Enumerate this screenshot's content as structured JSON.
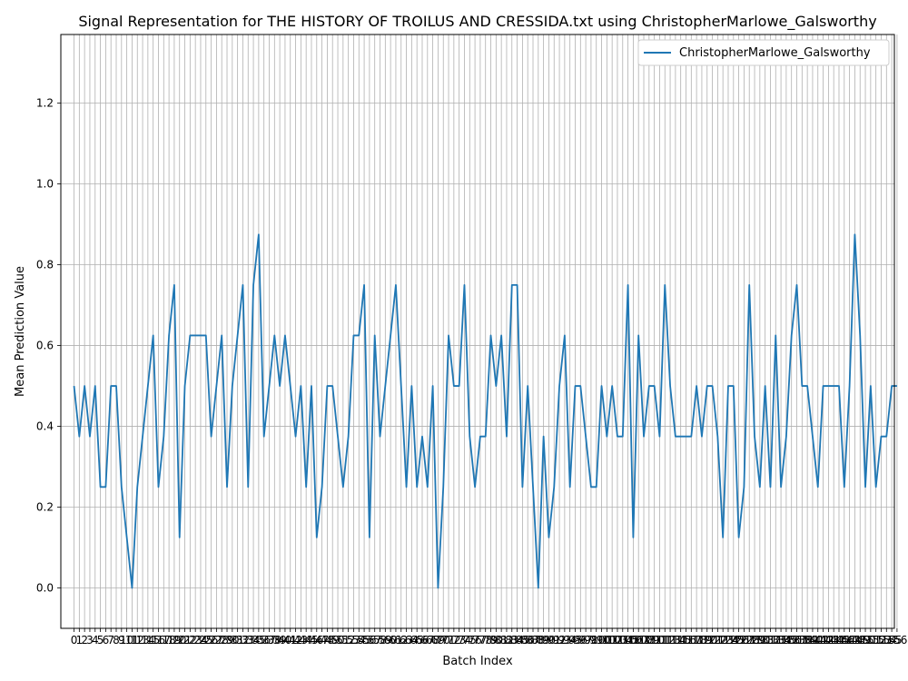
{
  "chart_data": {
    "type": "line",
    "title": "Signal Representation for THE HISTORY OF TROILUS AND CRESSIDA.txt using ChristopherMarlowe_Galsworthy",
    "xlabel": "Batch Index",
    "ylabel": "Mean Prediction Value",
    "xlim": [
      -2.5,
      155.5
    ],
    "ylim": [
      -0.1,
      1.37
    ],
    "y_ticks": [
      0.0,
      0.2,
      0.4,
      0.6,
      0.8,
      1.0,
      1.2
    ],
    "x_ticks_every": 1,
    "grid": true,
    "legend_position": "top-right",
    "series": [
      {
        "name": "ChristopherMarlowe_Galsworthy",
        "color": "#1f77b4",
        "values": [
          0.5,
          0.375,
          0.5,
          0.375,
          0.5,
          0.25,
          0.25,
          0.5,
          0.5,
          0.25,
          0.125,
          0.0,
          0.25,
          0.375,
          0.5,
          0.625,
          0.25,
          0.375,
          0.625,
          0.75,
          0.125,
          0.5,
          0.625,
          0.625,
          0.625,
          0.625,
          0.375,
          0.5,
          0.625,
          0.25,
          0.5,
          0.625,
          0.75,
          0.25,
          0.75,
          0.875,
          0.375,
          0.5,
          0.625,
          0.5,
          0.625,
          0.5,
          0.375,
          0.5,
          0.25,
          0.5,
          0.125,
          0.25,
          0.5,
          0.5,
          0.375,
          0.25,
          0.375,
          0.625,
          0.625,
          0.75,
          0.125,
          0.625,
          0.375,
          0.5,
          0.625,
          0.75,
          0.5,
          0.25,
          0.5,
          0.25,
          0.375,
          0.25,
          0.5,
          0.0,
          0.25,
          0.625,
          0.5,
          0.5,
          0.75,
          0.375,
          0.25,
          0.375,
          0.375,
          0.625,
          0.5,
          0.625,
          0.375,
          0.75,
          0.75,
          0.25,
          0.5,
          0.25,
          0.0,
          0.375,
          0.125,
          0.25,
          0.5,
          0.625,
          0.25,
          0.5,
          0.5,
          0.375,
          0.25,
          0.25,
          0.5,
          0.375,
          0.5,
          0.375,
          0.375,
          0.75,
          0.125,
          0.625,
          0.375,
          0.5,
          0.5,
          0.375,
          0.75,
          0.5,
          0.375,
          0.375,
          0.375,
          0.375,
          0.5,
          0.375,
          0.5,
          0.5,
          0.375,
          0.125,
          0.5,
          0.5,
          0.125,
          0.25,
          0.75,
          0.375,
          0.25,
          0.5,
          0.25,
          0.625,
          0.25,
          0.375,
          0.625,
          0.75,
          0.5,
          0.5,
          0.375,
          0.25,
          0.5,
          0.5,
          0.5,
          0.5,
          0.25,
          0.5,
          0.875,
          0.625,
          0.25,
          0.5,
          0.25,
          0.375,
          0.375,
          0.5,
          0.5
        ]
      }
    ]
  }
}
